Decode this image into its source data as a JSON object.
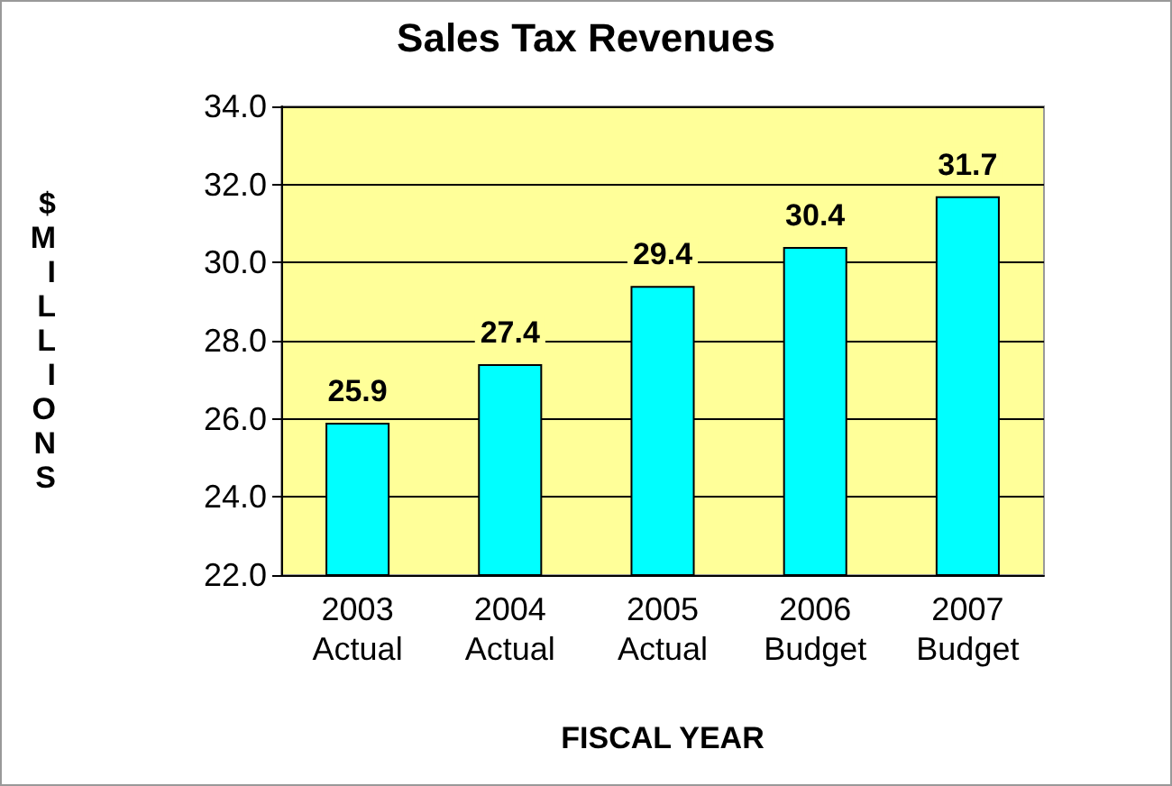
{
  "chart_data": {
    "type": "bar",
    "title": "Sales Tax Revenues",
    "xlabel": "FISCAL YEAR",
    "ylabel": "$MILLIONS",
    "categories": [
      "2003 Actual",
      "2004 Actual",
      "2005 Actual",
      "2006 Budget",
      "2007 Budget"
    ],
    "values": [
      25.9,
      27.4,
      29.4,
      30.4,
      31.7
    ],
    "color": "#00ffff",
    "ylim": [
      22,
      34
    ],
    "yticks": [
      {
        "value": 22,
        "label": "22.0"
      },
      {
        "value": 24,
        "label": "24.0"
      },
      {
        "value": 26,
        "label": "26.0"
      },
      {
        "value": 28,
        "label": "28.0"
      },
      {
        "value": 30,
        "label": "30.0"
      },
      {
        "value": 32,
        "label": "32.0"
      },
      {
        "value": 34,
        "label": "34.0"
      }
    ],
    "grid": "y",
    "data_labels": true
  }
}
